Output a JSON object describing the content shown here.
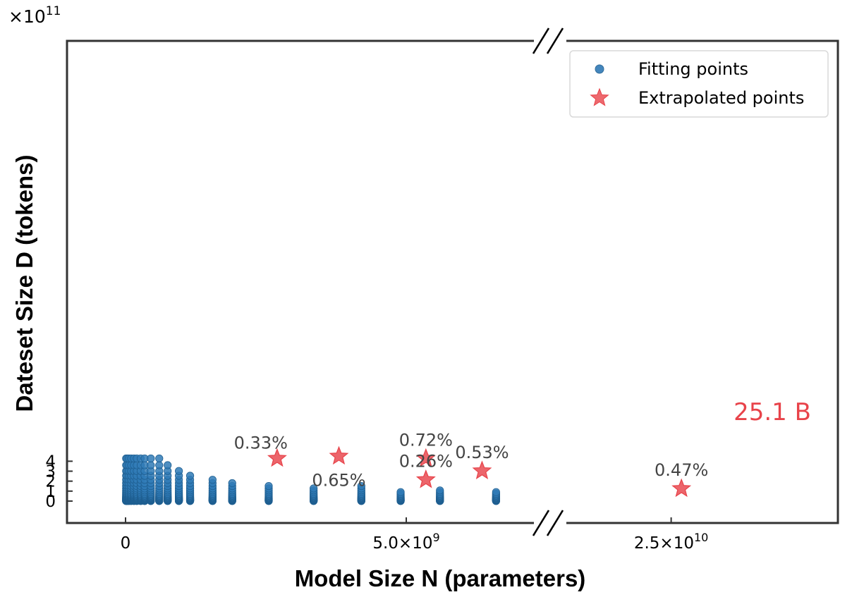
{
  "chart_data": {
    "type": "scatter",
    "xlabel": "Model Size N (parameters)",
    "ylabel": "Dateset Size D (tokens)",
    "y_multiplier_label": "×10",
    "y_multiplier_exponent": "11",
    "x_axis_broken": true,
    "x_segments": [
      [
        0,
        7500000000
      ],
      [
        24000000000,
        26500000000
      ]
    ],
    "ylim": [
      -220000000000,
      4620000000000
    ],
    "y_ticks": [
      0,
      100000000000,
      200000000000,
      300000000000,
      400000000000
    ],
    "y_tick_labels": [
      "0",
      "1",
      "2",
      "3",
      "4"
    ],
    "x_ticks": [
      {
        "value": 0,
        "label": "0",
        "exp": ""
      },
      {
        "value": 5000000000,
        "label": "5.0×10",
        "exp": "9"
      },
      {
        "value": 25000000000,
        "label": "2.5×10",
        "exp": "10"
      }
    ],
    "legend": {
      "position": "top-right",
      "entries": [
        {
          "label": "Fitting points",
          "marker": "circle"
        },
        {
          "label": "Extrapolated points",
          "marker": "star"
        }
      ]
    },
    "grid": false,
    "colors": {
      "fitting": "#2f7ab6",
      "extrapolated": "#e8434a",
      "highlight": "#e8434a",
      "annotation": "#444444"
    },
    "series": [
      {
        "name": "Fitting points",
        "marker": "circle",
        "N_values": [
          10000000,
          30000000,
          60000000,
          100000000,
          150000000,
          200000000,
          270000000,
          340000000,
          450000000,
          600000000,
          750000000,
          950000000,
          1150000000,
          1550000000,
          1900000000,
          2550000000,
          3350000000,
          4200000000,
          4900000000,
          5600000000,
          6600000000
        ],
        "D_levels": [
          1000000000,
          2000000000,
          4000000000,
          6000000000,
          8000000000,
          10000000000,
          12000000000,
          15000000000,
          18000000000,
          21000000000,
          24000000000,
          28000000000,
          33000000000,
          38000000000,
          45000000000,
          54000000000,
          64000000000,
          75000000000,
          90000000000,
          107000000000,
          127000000000,
          151000000000,
          180000000000,
          214000000000,
          254000000000,
          302000000000,
          360000000000,
          428000000000
        ],
        "max_D_per_N": [
          428000000000,
          428000000000,
          428000000000,
          428000000000,
          428000000000,
          428000000000,
          428000000000,
          428000000000,
          428000000000,
          428000000000,
          360000000000,
          302000000000,
          254000000000,
          214000000000,
          180000000000,
          151000000000,
          127000000000,
          151000000000,
          90000000000,
          107000000000,
          90000000000
        ]
      },
      {
        "name": "Extrapolated points",
        "marker": "star",
        "points": [
          {
            "x": 2700000000,
            "y": 428000000000,
            "label": "0.33%",
            "label_pos": "above-left"
          },
          {
            "x": 3800000000,
            "y": 450000000000,
            "label": "0.65%",
            "label_pos": "below"
          },
          {
            "x": 5350000000,
            "y": 428000000000,
            "label": "0.72%",
            "label_pos": "above"
          },
          {
            "x": 6350000000,
            "y": 303000000000,
            "label": "0.53%",
            "label_pos": "above"
          },
          {
            "x": 5350000000,
            "y": 214000000000,
            "label": "0.26%",
            "label_pos": "above"
          },
          {
            "x": 25100000000,
            "y": 125000000000,
            "label": "0.47%",
            "label_pos": "above"
          }
        ]
      }
    ],
    "highlight_annotation": {
      "text": "25.1 B"
    }
  }
}
